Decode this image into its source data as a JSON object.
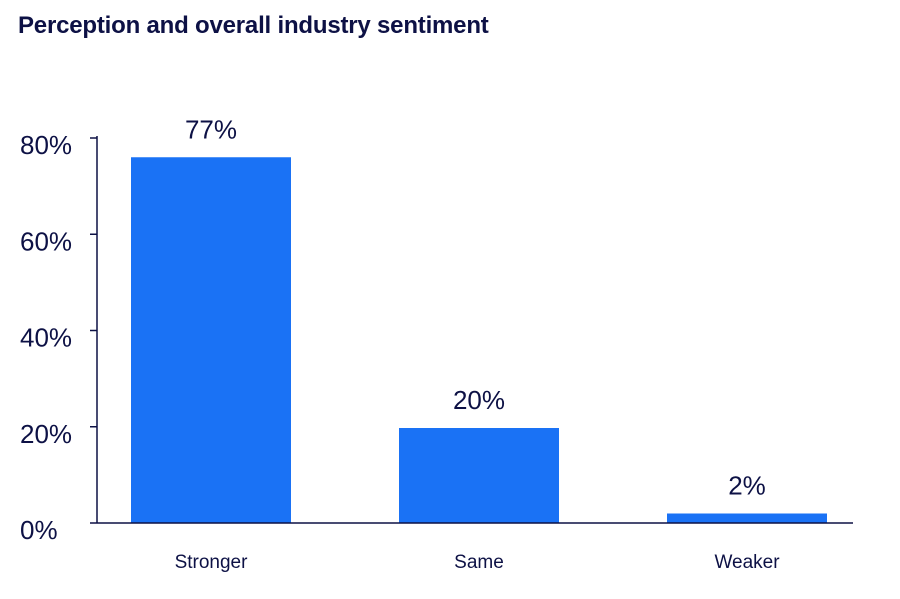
{
  "chart_data": {
    "type": "bar",
    "title": "Perception and overall industry sentiment",
    "categories": [
      "Stronger",
      "Same",
      "Weaker"
    ],
    "values": [
      77,
      20,
      2
    ],
    "data_labels": [
      "77%",
      "20%",
      "2%"
    ],
    "ylim": [
      0,
      80
    ],
    "yticks": [
      0,
      20,
      40,
      60,
      80
    ],
    "ytick_labels": [
      "0%",
      "20%",
      "40%",
      "60%",
      "80%"
    ],
    "xlabel": "",
    "ylabel": "",
    "grid": false,
    "bar_color": "#1a72f5",
    "axis_color": "#0d1145"
  }
}
